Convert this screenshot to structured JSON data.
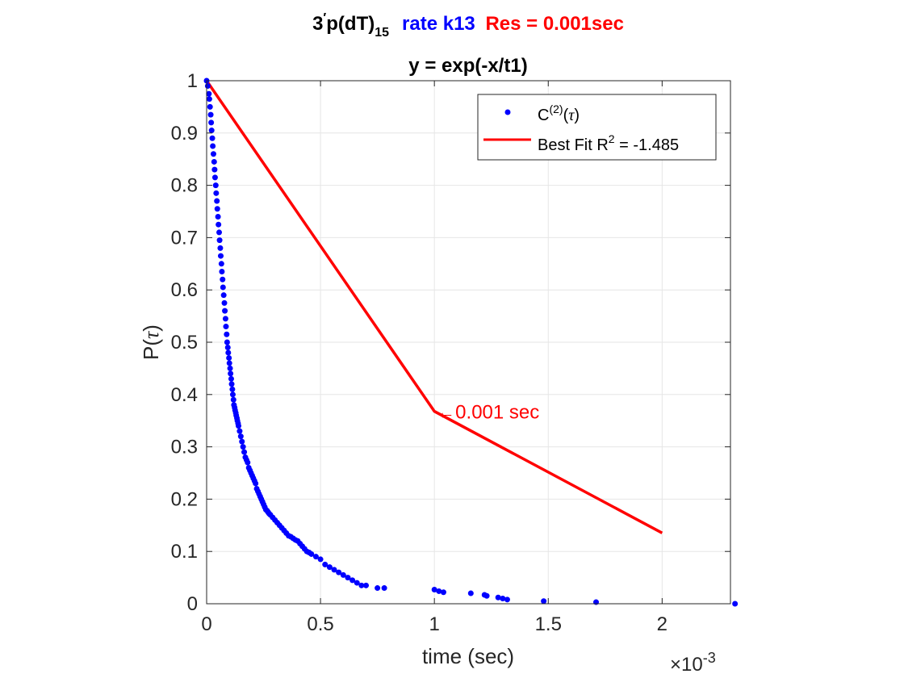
{
  "title": {
    "line1": {
      "part_a_base": "3",
      "part_a_prime": "′",
      "part_a_rest": "p(dT)",
      "part_a_sub": "15",
      "part_b": "rate k13",
      "part_c": "Res = 0.001sec",
      "color_a": "#000000",
      "color_b": "#0000ff",
      "color_c": "#ff0000"
    },
    "line2": "y = exp(-x/t1)"
  },
  "chart_data": {
    "type": "scatter",
    "xlabel": "time (sec)",
    "ylabel_base": "P(",
    "ylabel_sym": "τ",
    "ylabel_close": ")",
    "x_exponent_label": "×10",
    "x_exponent_value": "-3",
    "x_scale": 0.001,
    "xlim": [
      0,
      2.3
    ],
    "ylim": [
      0,
      1
    ],
    "grid": true,
    "x_ticks": [
      0,
      0.5,
      1,
      1.5,
      2
    ],
    "x_tick_labels": [
      "0",
      "0.5",
      "1",
      "1.5",
      "2"
    ],
    "y_ticks": [
      0,
      0.1,
      0.2,
      0.3,
      0.4,
      0.5,
      0.6,
      0.7,
      0.8,
      0.9,
      1
    ],
    "y_tick_labels": [
      "0",
      "0.1",
      "0.2",
      "0.3",
      "0.4",
      "0.5",
      "0.6",
      "0.7",
      "0.8",
      "0.9",
      "1"
    ],
    "legend_position": "top-right",
    "series": [
      {
        "name": "C(2)(τ)",
        "legend_base": "C",
        "legend_sup": "(2)",
        "legend_rest_open": "(",
        "legend_sym": "τ",
        "legend_rest_close": ")",
        "kind": "scatter",
        "color": "#0000ff",
        "x": [
          0,
          0.005,
          0.01,
          0.012,
          0.015,
          0.018,
          0.02,
          0.022,
          0.025,
          0.027,
          0.03,
          0.033,
          0.035,
          0.037,
          0.04,
          0.042,
          0.045,
          0.047,
          0.05,
          0.052,
          0.055,
          0.057,
          0.06,
          0.062,
          0.065,
          0.067,
          0.07,
          0.072,
          0.075,
          0.078,
          0.08,
          0.083,
          0.085,
          0.088,
          0.09,
          0.093,
          0.095,
          0.098,
          0.1,
          0.103,
          0.105,
          0.108,
          0.11,
          0.113,
          0.115,
          0.118,
          0.12,
          0.123,
          0.125,
          0.128,
          0.13,
          0.133,
          0.135,
          0.138,
          0.14,
          0.145,
          0.15,
          0.155,
          0.16,
          0.165,
          0.17,
          0.175,
          0.18,
          0.185,
          0.19,
          0.195,
          0.2,
          0.205,
          0.21,
          0.215,
          0.22,
          0.225,
          0.23,
          0.235,
          0.24,
          0.245,
          0.25,
          0.255,
          0.26,
          0.265,
          0.27,
          0.275,
          0.28,
          0.29,
          0.3,
          0.31,
          0.32,
          0.33,
          0.34,
          0.35,
          0.36,
          0.37,
          0.38,
          0.39,
          0.4,
          0.41,
          0.42,
          0.43,
          0.44,
          0.45,
          0.46,
          0.48,
          0.5,
          0.52,
          0.54,
          0.56,
          0.58,
          0.6,
          0.62,
          0.64,
          0.66,
          0.68,
          0.7,
          0.75,
          0.78,
          1.0,
          1.02,
          1.04,
          1.16,
          1.22,
          1.23,
          1.28,
          1.3,
          1.32,
          1.48,
          1.71,
          2.32
        ],
        "y": [
          1.0,
          0.99,
          0.975,
          0.965,
          0.95,
          0.935,
          0.92,
          0.905,
          0.89,
          0.875,
          0.86,
          0.845,
          0.83,
          0.815,
          0.8,
          0.785,
          0.77,
          0.755,
          0.74,
          0.725,
          0.71,
          0.695,
          0.68,
          0.665,
          0.65,
          0.635,
          0.62,
          0.605,
          0.59,
          0.575,
          0.56,
          0.545,
          0.53,
          0.515,
          0.5,
          0.49,
          0.48,
          0.47,
          0.46,
          0.45,
          0.44,
          0.43,
          0.42,
          0.41,
          0.4,
          0.39,
          0.38,
          0.375,
          0.37,
          0.365,
          0.36,
          0.355,
          0.35,
          0.345,
          0.34,
          0.33,
          0.32,
          0.31,
          0.3,
          0.29,
          0.28,
          0.275,
          0.27,
          0.26,
          0.255,
          0.25,
          0.245,
          0.24,
          0.235,
          0.23,
          0.22,
          0.215,
          0.21,
          0.205,
          0.2,
          0.195,
          0.19,
          0.185,
          0.18,
          0.178,
          0.175,
          0.172,
          0.17,
          0.165,
          0.16,
          0.155,
          0.15,
          0.145,
          0.14,
          0.135,
          0.13,
          0.128,
          0.125,
          0.122,
          0.12,
          0.115,
          0.11,
          0.105,
          0.1,
          0.098,
          0.095,
          0.09,
          0.085,
          0.075,
          0.07,
          0.065,
          0.06,
          0.055,
          0.05,
          0.045,
          0.04,
          0.035,
          0.035,
          0.03,
          0.03,
          0.027,
          0.024,
          0.022,
          0.02,
          0.017,
          0.015,
          0.012,
          0.01,
          0.008,
          0.005,
          0.003,
          0.0
        ]
      },
      {
        "name": "Best Fit R2 = -1.485",
        "legend_base": "Best Fit R",
        "legend_sup": "2",
        "legend_rest": " = -1.485",
        "kind": "line",
        "color": "#ff0000",
        "x": [
          0,
          1,
          2
        ],
        "y": [
          1.0,
          0.3679,
          0.1353
        ]
      }
    ],
    "annotation": {
      "text": "←0.001 sec",
      "x": 1,
      "y": 0.3679,
      "color": "#ff0000"
    }
  }
}
